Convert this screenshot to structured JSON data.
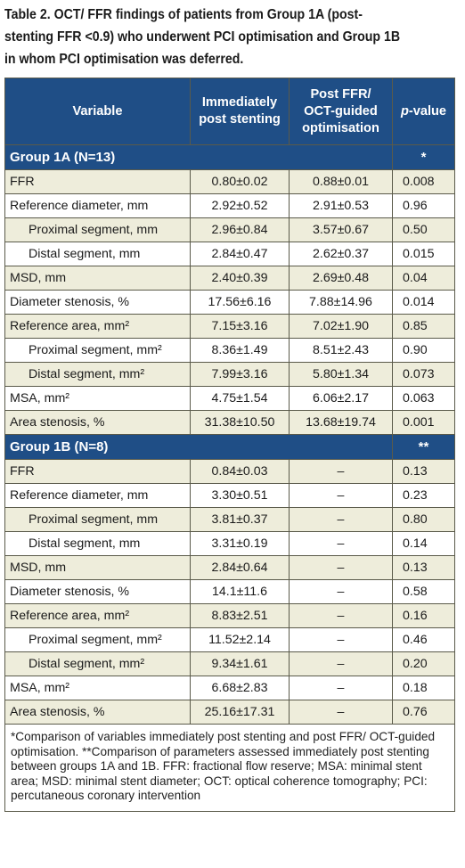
{
  "caption": {
    "line1": "Table 2. OCT/ FFR findings of patients from Group 1A (post-",
    "line2": "stenting FFR <0.9) who underwent PCI optimisation and Group 1B",
    "line3": "in whom PCI optimisation was deferred."
  },
  "header": {
    "variable": "Variable",
    "col2_line1": "Immediately",
    "col2_line2": "post stenting",
    "col3_line1": "Post FFR/",
    "col3_line2": "OCT-guided",
    "col3_line3": "optimisation",
    "col4_italic": "p",
    "col4_rest": "-value"
  },
  "groups": [
    {
      "label": "Group 1A (N=13)",
      "mark": "*",
      "rows": [
        {
          "variable": "FFR",
          "indent": false,
          "post": "0.80±0.02",
          "opt": "0.88±0.01",
          "p": "0.008"
        },
        {
          "variable": "Reference diameter, mm",
          "indent": false,
          "post": "2.92±0.52",
          "opt": "2.91±0.53",
          "p": "0.96"
        },
        {
          "variable": "Proximal segment, mm",
          "indent": true,
          "post": "2.96±0.84",
          "opt": "3.57±0.67",
          "p": "0.50"
        },
        {
          "variable": "Distal segment, mm",
          "indent": true,
          "post": "2.84±0.47",
          "opt": "2.62±0.37",
          "p": "0.015"
        },
        {
          "variable": "MSD, mm",
          "indent": false,
          "post": "2.40±0.39",
          "opt": "2.69±0.48",
          "p": "0.04"
        },
        {
          "variable": "Diameter stenosis, %",
          "indent": false,
          "post": "17.56±6.16",
          "opt": "7.88±14.96",
          "p": "0.014"
        },
        {
          "variable": "Reference area, mm²",
          "indent": false,
          "post": "7.15±3.16",
          "opt": "7.02±1.90",
          "p": "0.85"
        },
        {
          "variable": "Proximal segment, mm²",
          "indent": true,
          "post": "8.36±1.49",
          "opt": "8.51±2.43",
          "p": "0.90"
        },
        {
          "variable": "Distal segment, mm²",
          "indent": true,
          "post": "7.99±3.16",
          "opt": "5.80±1.34",
          "p": "0.073"
        },
        {
          "variable": "MSA, mm²",
          "indent": false,
          "post": "4.75±1.54",
          "opt": "6.06±2.17",
          "p": "0.063"
        },
        {
          "variable": "Area stenosis, %",
          "indent": false,
          "post": "31.38±10.50",
          "opt": "13.68±19.74",
          "p": "0.001"
        }
      ]
    },
    {
      "label": "Group 1B (N=8)",
      "mark": "**",
      "rows": [
        {
          "variable": "FFR",
          "indent": false,
          "post": "0.84±0.03",
          "opt": "–",
          "p": "0.13"
        },
        {
          "variable": "Reference diameter, mm",
          "indent": false,
          "post": "3.30±0.51",
          "opt": "–",
          "p": "0.23"
        },
        {
          "variable": "Proximal segment, mm",
          "indent": true,
          "post": "3.81±0.37",
          "opt": "–",
          "p": "0.80"
        },
        {
          "variable": "Distal segment, mm",
          "indent": true,
          "post": "3.31±0.19",
          "opt": "–",
          "p": "0.14"
        },
        {
          "variable": "MSD, mm",
          "indent": false,
          "post": "2.84±0.64",
          "opt": "–",
          "p": "0.13"
        },
        {
          "variable": "Diameter stenosis, %",
          "indent": false,
          "post": "14.1±11.6",
          "opt": "–",
          "p": "0.58"
        },
        {
          "variable": "Reference area, mm²",
          "indent": false,
          "post": "8.83±2.51",
          "opt": "–",
          "p": "0.16"
        },
        {
          "variable": "Proximal segment, mm²",
          "indent": true,
          "post": "11.52±2.14",
          "opt": "–",
          "p": "0.46"
        },
        {
          "variable": "Distal segment, mm²",
          "indent": true,
          "post": "9.34±1.61",
          "opt": "–",
          "p": "0.20"
        },
        {
          "variable": "MSA, mm²",
          "indent": false,
          "post": "6.68±2.83",
          "opt": "–",
          "p": "0.18"
        },
        {
          "variable": "Area stenosis, %",
          "indent": false,
          "post": "25.16±17.31",
          "opt": "–",
          "p": "0.76"
        }
      ]
    }
  ],
  "footnote": "*Comparison of variables immediately post stenting and post FFR/ OCT-guided optimisation. **Comparison of parameters assessed immediately post stenting between groups 1A and 1B. FFR: fractional flow reserve; MSA: minimal stent area; MSD: minimal stent diameter; OCT: optical coherence tomography; PCI: percutaneous coronary intervention",
  "colors": {
    "header_bg": "#1f4e86",
    "shaded_row": "#eeeddb",
    "white_row": "#ffffff"
  }
}
